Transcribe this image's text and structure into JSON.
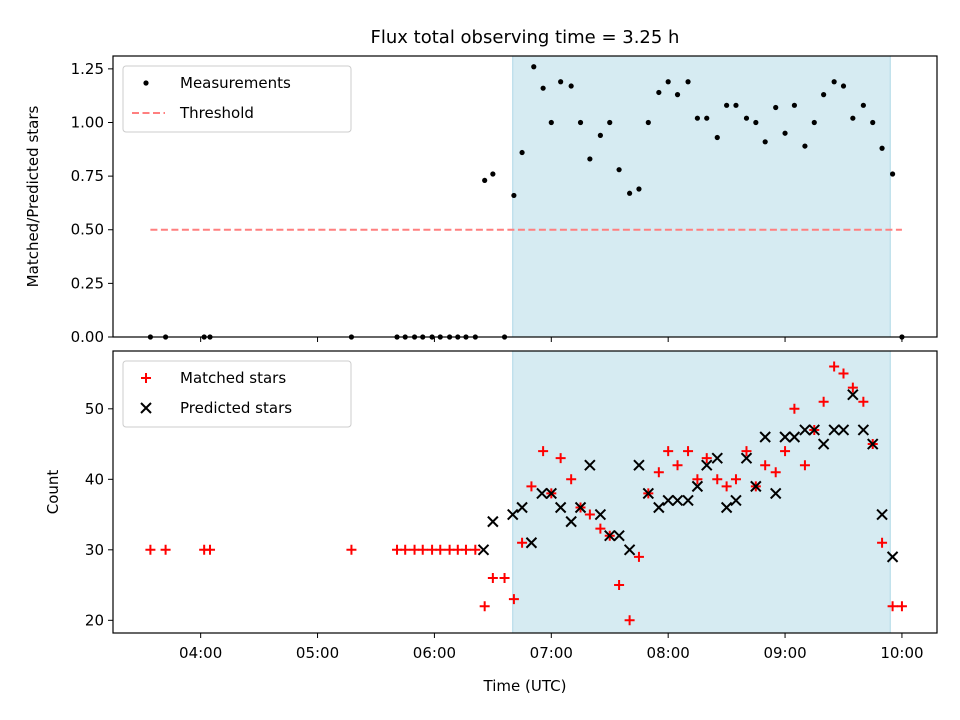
{
  "chart_data": [
    {
      "type": "scatter",
      "title": "Flux total observing time = 3.25 h",
      "ylabel": "Matched/Predicted stars",
      "xlabel": "",
      "xlim": [
        3.25,
        10.3
      ],
      "ylim": [
        0.0,
        1.31
      ],
      "yticks": [
        0.0,
        0.25,
        0.5,
        0.75,
        1.0,
        1.25
      ],
      "ytick_labels": [
        "0.00",
        "0.25",
        "0.50",
        "0.75",
        "1.00",
        "1.25"
      ],
      "xticks": [
        4,
        5,
        6,
        7,
        8,
        9,
        10
      ],
      "xtick_labels": [
        "04:00",
        "05:00",
        "06:00",
        "07:00",
        "08:00",
        "09:00",
        "10:00"
      ],
      "grid": false,
      "legend_position": "top-left",
      "shaded_region": {
        "x": [
          6.67,
          9.9
        ],
        "color": "#add8e6"
      },
      "series": [
        {
          "name": "Measurements",
          "kind": "scatter",
          "marker": "dot",
          "color": "#000000",
          "x": [
            3.57,
            3.7,
            4.03,
            4.08,
            5.29,
            5.68,
            5.75,
            5.83,
            5.9,
            5.98,
            6.05,
            6.13,
            6.2,
            6.27,
            6.35,
            6.43,
            6.5,
            6.6,
            6.68,
            6.75,
            6.85,
            6.93,
            7.0,
            7.08,
            7.17,
            7.25,
            7.33,
            7.42,
            7.5,
            7.58,
            7.67,
            7.75,
            7.83,
            7.92,
            8.0,
            8.08,
            8.17,
            8.25,
            8.33,
            8.42,
            8.5,
            8.58,
            8.67,
            8.75,
            8.83,
            8.92,
            9.0,
            9.08,
            9.17,
            9.25,
            9.33,
            9.42,
            9.5,
            9.58,
            9.67,
            9.75,
            9.83,
            9.92,
            10.0
          ],
          "y": [
            0.0,
            0.0,
            0.0,
            0.0,
            0.0,
            0.0,
            0.0,
            0.0,
            0.0,
            0.0,
            0.0,
            0.0,
            0.0,
            0.0,
            0.0,
            0.73,
            0.76,
            0.0,
            0.66,
            0.86,
            1.26,
            1.16,
            1.0,
            1.19,
            1.17,
            1.0,
            0.83,
            0.94,
            1.0,
            0.78,
            0.67,
            0.69,
            1.0,
            1.14,
            1.19,
            1.13,
            1.19,
            1.02,
            1.02,
            0.93,
            1.08,
            1.08,
            1.02,
            1.0,
            0.91,
            1.07,
            0.95,
            1.08,
            0.89,
            1.0,
            1.13,
            1.19,
            1.17,
            1.02,
            1.08,
            1.0,
            0.88,
            0.76,
            0.0
          ]
        },
        {
          "name": "Threshold",
          "kind": "line",
          "style": "dashed",
          "color": "#ff7f7f",
          "x": [
            3.57,
            10.0
          ],
          "y": [
            0.5,
            0.5
          ]
        }
      ]
    },
    {
      "type": "scatter",
      "title": "",
      "ylabel": "Count",
      "xlabel": "Time (UTC)",
      "xlim": [
        3.25,
        10.3
      ],
      "ylim": [
        18.2,
        58.2
      ],
      "yticks": [
        20,
        30,
        40,
        50
      ],
      "ytick_labels": [
        "20",
        "30",
        "40",
        "50"
      ],
      "xticks": [
        4,
        5,
        6,
        7,
        8,
        9,
        10
      ],
      "xtick_labels": [
        "04:00",
        "05:00",
        "06:00",
        "07:00",
        "08:00",
        "09:00",
        "10:00"
      ],
      "grid": false,
      "legend_position": "top-left",
      "shaded_region": {
        "x": [
          6.67,
          9.9
        ],
        "color": "#add8e6"
      },
      "series": [
        {
          "name": "Matched stars",
          "kind": "scatter",
          "marker": "plus",
          "color": "#ff0000",
          "x": [
            3.57,
            3.7,
            4.03,
            4.08,
            5.29,
            5.68,
            5.75,
            5.83,
            5.9,
            5.98,
            6.05,
            6.13,
            6.2,
            6.27,
            6.35,
            6.43,
            6.5,
            6.6,
            6.68,
            6.75,
            6.83,
            6.93,
            7.0,
            7.08,
            7.17,
            7.25,
            7.33,
            7.42,
            7.5,
            7.58,
            7.67,
            7.75,
            7.83,
            7.92,
            8.0,
            8.08,
            8.17,
            8.25,
            8.33,
            8.42,
            8.5,
            8.58,
            8.67,
            8.75,
            8.83,
            8.92,
            9.0,
            9.08,
            9.17,
            9.25,
            9.33,
            9.42,
            9.5,
            9.58,
            9.67,
            9.75,
            9.83,
            9.92,
            10.0
          ],
          "y": [
            30,
            30,
            30,
            30,
            30,
            30,
            30,
            30,
            30,
            30,
            30,
            30,
            30,
            30,
            30,
            22,
            26,
            26,
            23,
            31,
            39,
            44,
            38,
            43,
            40,
            36,
            35,
            33,
            32,
            25,
            20,
            29,
            38,
            41,
            44,
            42,
            44,
            40,
            43,
            40,
            39,
            40,
            44,
            39,
            42,
            41,
            44,
            50,
            42,
            47,
            51,
            56,
            55,
            53,
            51,
            45,
            31,
            22,
            22
          ]
        },
        {
          "name": "Predicted stars",
          "kind": "scatter",
          "marker": "x",
          "color": "#000000",
          "x": [
            6.42,
            6.5,
            6.67,
            6.75,
            6.83,
            6.92,
            7.0,
            7.08,
            7.17,
            7.25,
            7.33,
            7.42,
            7.5,
            7.58,
            7.67,
            7.75,
            7.83,
            7.92,
            8.0,
            8.08,
            8.17,
            8.25,
            8.33,
            8.42,
            8.5,
            8.58,
            8.67,
            8.75,
            8.83,
            8.92,
            9.0,
            9.08,
            9.17,
            9.25,
            9.33,
            9.42,
            9.5,
            9.58,
            9.67,
            9.75,
            9.83,
            9.92
          ],
          "y": [
            30,
            34,
            35,
            36,
            31,
            38,
            38,
            36,
            34,
            36,
            42,
            35,
            32,
            32,
            30,
            42,
            38,
            36,
            37,
            37,
            37,
            39,
            42,
            43,
            36,
            37,
            43,
            39,
            46,
            38,
            46,
            46,
            47,
            47,
            45,
            47,
            47,
            52,
            47,
            45,
            35,
            29
          ]
        }
      ]
    }
  ]
}
